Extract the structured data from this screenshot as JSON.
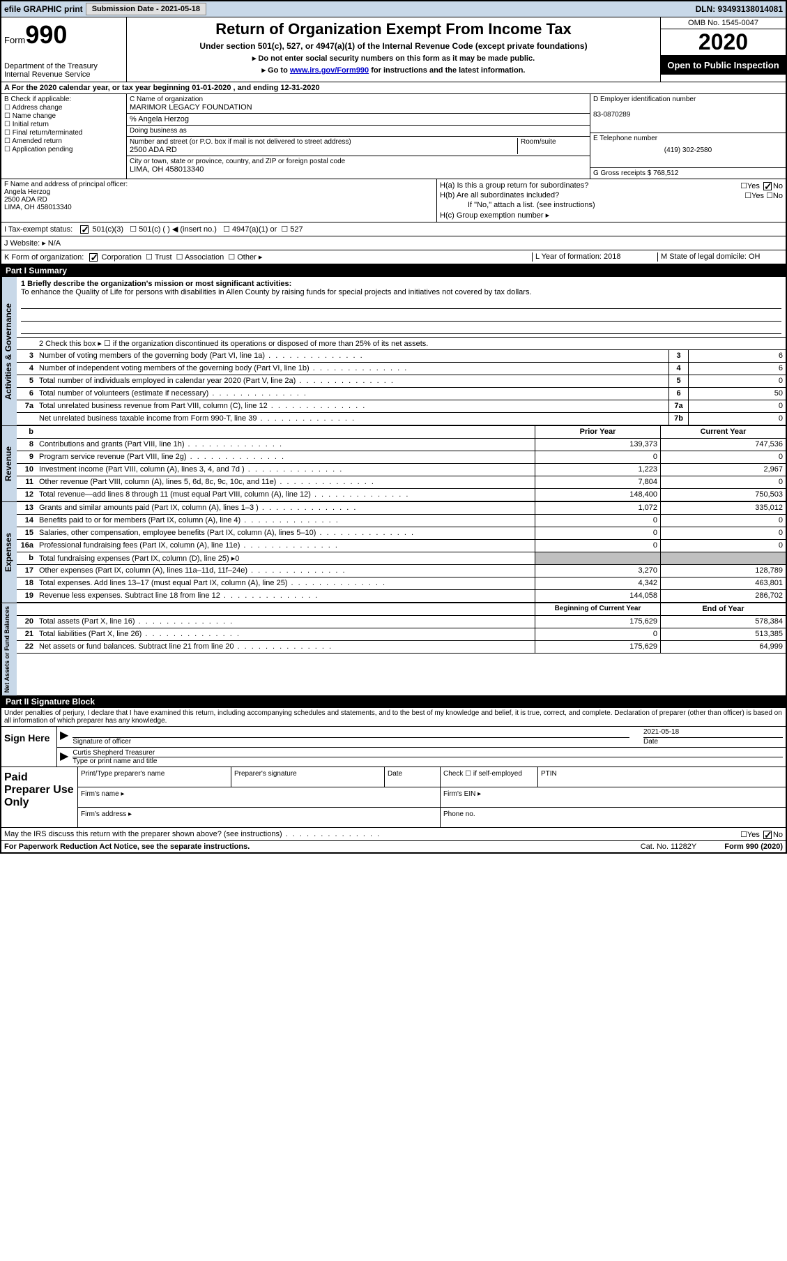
{
  "topbar": {
    "efile": "efile GRAPHIC print",
    "submission_label": "Submission Date - 2021-05-18",
    "dln": "DLN: 93493138014081"
  },
  "header": {
    "form": "Form",
    "form_num": "990",
    "dept": "Department of the Treasury Internal Revenue Service",
    "title": "Return of Organization Exempt From Income Tax",
    "subtitle": "Under section 501(c), 527, or 4947(a)(1) of the Internal Revenue Code (except private foundations)",
    "note1": "▸ Do not enter social security numbers on this form as it may be made public.",
    "note2_pre": "▸ Go to ",
    "note2_link": "www.irs.gov/Form990",
    "note2_post": " for instructions and the latest information.",
    "omb": "OMB No. 1545-0047",
    "year": "2020",
    "inspect": "Open to Public Inspection"
  },
  "row_a": "A For the 2020 calendar year, or tax year beginning 01-01-2020   , and ending 12-31-2020",
  "section_b": {
    "label": "B Check if applicable:",
    "items": [
      "Address change",
      "Name change",
      "Initial return",
      "Final return/terminated",
      "Amended return",
      "Application pending"
    ]
  },
  "section_c": {
    "name_label": "C Name of organization",
    "name": "MARIMOR LEGACY FOUNDATION",
    "care_of": "% Angela Herzog",
    "dba_label": "Doing business as",
    "addr_label": "Number and street (or P.O. box if mail is not delivered to street address)",
    "room_label": "Room/suite",
    "addr": "2500 ADA RD",
    "city_label": "City or town, state or province, country, and ZIP or foreign postal code",
    "city": "LIMA, OH  458013340"
  },
  "section_d": {
    "ein_label": "D Employer identification number",
    "ein": "83-0870289",
    "tel_label": "E Telephone number",
    "tel": "(419) 302-2580",
    "gross_label": "G Gross receipts $ 768,512"
  },
  "section_f": {
    "label": "F Name and address of principal officer:",
    "name": "Angela Herzog",
    "addr": "2500 ADA RD",
    "city": "LIMA, OH  458013340"
  },
  "section_h": {
    "ha": "H(a)  Is this a group return for subordinates?",
    "hb": "H(b)  Are all subordinates included?",
    "hb_note": "If \"No,\" attach a list. (see instructions)",
    "hc": "H(c)  Group exemption number ▸"
  },
  "row_i": "I  Tax-exempt status:",
  "row_i_opts": [
    "501(c)(3)",
    "501(c) (  ) ◀ (insert no.)",
    "4947(a)(1) or",
    "527"
  ],
  "row_j": "J  Website: ▸  N/A",
  "row_k": "K Form of organization:",
  "row_k_opts": [
    "Corporation",
    "Trust",
    "Association",
    "Other ▸"
  ],
  "row_l": "L Year of formation: 2018",
  "row_m": "M State of legal domicile: OH",
  "part1_header": "Part I        Summary",
  "mission": {
    "label": "1  Briefly describe the organization's mission or most significant activities:",
    "text": "To enhance the Quality of Life for persons with disabilities in Allen County by raising funds for special projects and initiatives not covered by tax dollars."
  },
  "line2": "2    Check this box ▸ ☐  if the organization discontinued its operations or disposed of more than 25% of its net assets.",
  "governance_lines": [
    {
      "num": "3",
      "desc": "Number of voting members of the governing body (Part VI, line 1a)",
      "box": "3",
      "val": "6"
    },
    {
      "num": "4",
      "desc": "Number of independent voting members of the governing body (Part VI, line 1b)",
      "box": "4",
      "val": "6"
    },
    {
      "num": "5",
      "desc": "Total number of individuals employed in calendar year 2020 (Part V, line 2a)",
      "box": "5",
      "val": "0"
    },
    {
      "num": "6",
      "desc": "Total number of volunteers (estimate if necessary)",
      "box": "6",
      "val": "50"
    },
    {
      "num": "7a",
      "desc": "Total unrelated business revenue from Part VIII, column (C), line 12",
      "box": "7a",
      "val": "0"
    },
    {
      "num": "",
      "desc": "Net unrelated business taxable income from Form 990-T, line 39",
      "box": "7b",
      "val": "0"
    }
  ],
  "col_headers": {
    "prior": "Prior Year",
    "curr": "Current Year"
  },
  "revenue_lines": [
    {
      "num": "8",
      "desc": "Contributions and grants (Part VIII, line 1h)",
      "prior": "139,373",
      "curr": "747,536"
    },
    {
      "num": "9",
      "desc": "Program service revenue (Part VIII, line 2g)",
      "prior": "0",
      "curr": "0"
    },
    {
      "num": "10",
      "desc": "Investment income (Part VIII, column (A), lines 3, 4, and 7d )",
      "prior": "1,223",
      "curr": "2,967"
    },
    {
      "num": "11",
      "desc": "Other revenue (Part VIII, column (A), lines 5, 6d, 8c, 9c, 10c, and 11e)",
      "prior": "7,804",
      "curr": "0"
    },
    {
      "num": "12",
      "desc": "Total revenue—add lines 8 through 11 (must equal Part VIII, column (A), line 12)",
      "prior": "148,400",
      "curr": "750,503"
    }
  ],
  "expense_lines": [
    {
      "num": "13",
      "desc": "Grants and similar amounts paid (Part IX, column (A), lines 1–3 )",
      "prior": "1,072",
      "curr": "335,012"
    },
    {
      "num": "14",
      "desc": "Benefits paid to or for members (Part IX, column (A), line 4)",
      "prior": "0",
      "curr": "0"
    },
    {
      "num": "15",
      "desc": "Salaries, other compensation, employee benefits (Part IX, column (A), lines 5–10)",
      "prior": "0",
      "curr": "0"
    },
    {
      "num": "16a",
      "desc": "Professional fundraising fees (Part IX, column (A), line 11e)",
      "prior": "0",
      "curr": "0"
    },
    {
      "num": "b",
      "desc": "Total fundraising expenses (Part IX, column (D), line 25) ▸0",
      "prior": "",
      "curr": "",
      "shaded": true
    },
    {
      "num": "17",
      "desc": "Other expenses (Part IX, column (A), lines 11a–11d, 11f–24e)",
      "prior": "3,270",
      "curr": "128,789"
    },
    {
      "num": "18",
      "desc": "Total expenses. Add lines 13–17 (must equal Part IX, column (A), line 25)",
      "prior": "4,342",
      "curr": "463,801"
    },
    {
      "num": "19",
      "desc": "Revenue less expenses. Subtract line 18 from line 12",
      "prior": "144,058",
      "curr": "286,702"
    }
  ],
  "net_headers": {
    "prior": "Beginning of Current Year",
    "curr": "End of Year"
  },
  "net_lines": [
    {
      "num": "20",
      "desc": "Total assets (Part X, line 16)",
      "prior": "175,629",
      "curr": "578,384"
    },
    {
      "num": "21",
      "desc": "Total liabilities (Part X, line 26)",
      "prior": "0",
      "curr": "513,385"
    },
    {
      "num": "22",
      "desc": "Net assets or fund balances. Subtract line 21 from line 20",
      "prior": "175,629",
      "curr": "64,999"
    }
  ],
  "vert_labels": {
    "gov": "Activities & Governance",
    "rev": "Revenue",
    "exp": "Expenses",
    "net": "Net Assets or Fund Balances"
  },
  "part2_header": "Part II       Signature Block",
  "sig_penalties": "Under penalties of perjury, I declare that I have examined this return, including accompanying schedules and statements, and to the best of my knowledge and belief, it is true, correct, and complete. Declaration of preparer (other than officer) is based on all information of which preparer has any knowledge.",
  "sign_here": "Sign Here",
  "sig_officer": "Signature of officer",
  "sig_date_label": "Date",
  "sig_date": "2021-05-18",
  "sig_name": "Curtis Shepherd  Treasurer",
  "sig_name_label": "Type or print name and title",
  "paid_prep": "Paid Preparer Use Only",
  "prep_labels": {
    "name": "Print/Type preparer's name",
    "sig": "Preparer's signature",
    "date": "Date",
    "check": "Check ☐ if self-employed",
    "ptin": "PTIN",
    "firm_name": "Firm's name  ▸",
    "firm_ein": "Firm's EIN ▸",
    "firm_addr": "Firm's address ▸",
    "phone": "Phone no."
  },
  "discuss": "May the IRS discuss this return with the preparer shown above? (see instructions)",
  "footer": {
    "left": "For Paperwork Reduction Act Notice, see the separate instructions.",
    "mid": "Cat. No. 11282Y",
    "right": "Form 990 (2020)"
  }
}
